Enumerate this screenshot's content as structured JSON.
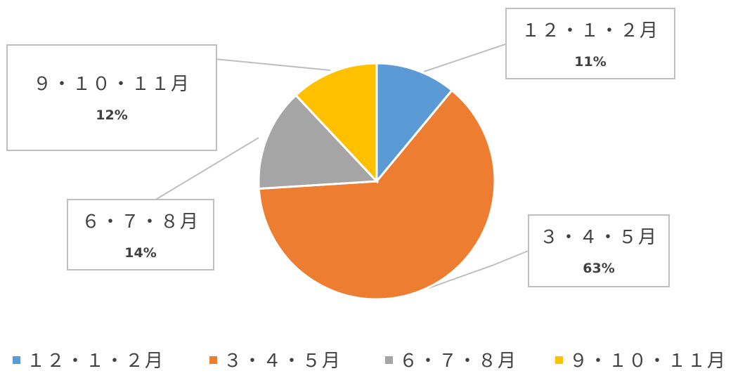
{
  "chart_data": {
    "type": "pie",
    "categories": [
      "１２・１・２月",
      "３・４・５月",
      "６・７・８月",
      "９・１０・１１月"
    ],
    "values": [
      11,
      63,
      14,
      12
    ],
    "value_labels": [
      "11%",
      "63%",
      "14%",
      "12%"
    ],
    "colors": [
      "#5b9bd5",
      "#ed7d31",
      "#a5a5a5",
      "#ffc000"
    ],
    "legend_position": "bottom"
  }
}
